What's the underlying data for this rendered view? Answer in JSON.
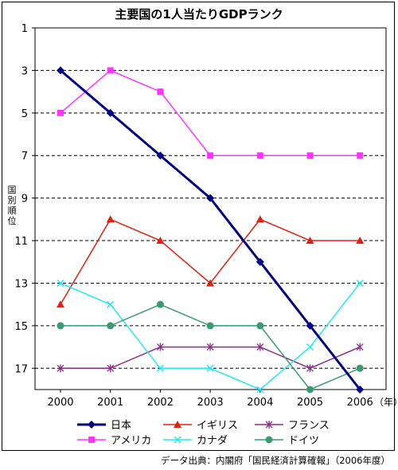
{
  "chart_data": {
    "type": "line",
    "title": "主要国の1人当たりGDPランク",
    "ylabel": "国別順位",
    "x_unit": "（年）",
    "x": [
      "2000",
      "2001",
      "2002",
      "2003",
      "2004",
      "2005",
      "2006"
    ],
    "ylim": [
      1,
      18
    ],
    "y_reversed": true,
    "y_ticks": [
      1,
      3,
      5,
      7,
      9,
      11,
      13,
      15,
      17
    ],
    "grid": "horizontal dashed",
    "legend_position": "bottom",
    "series": [
      {
        "name": "日本",
        "values": [
          3,
          5,
          7,
          9,
          12,
          15,
          18
        ],
        "color": "#000080",
        "marker": "diamond"
      },
      {
        "name": "イギリス",
        "values": [
          14,
          10,
          11,
          13,
          10,
          11,
          11
        ],
        "color": "#e02010",
        "marker": "triangle"
      },
      {
        "name": "フランス",
        "values": [
          17,
          17,
          16,
          16,
          16,
          17,
          16
        ],
        "color": "#8b2a8b",
        "marker": "asterisk"
      },
      {
        "name": "アメリカ",
        "values": [
          5,
          3,
          4,
          7,
          7,
          7,
          7
        ],
        "color": "#ff33ff",
        "marker": "square"
      },
      {
        "name": "カナダ",
        "values": [
          13,
          14,
          17,
          17,
          18,
          16,
          13
        ],
        "color": "#22e8f0",
        "marker": "cross"
      },
      {
        "name": "ドイツ",
        "values": [
          15,
          15,
          14,
          15,
          15,
          18,
          17
        ],
        "color": "#3a9a72",
        "marker": "circle"
      }
    ],
    "source": "データ出典：内閣府「国民経済計算確報」（2006年度）"
  }
}
